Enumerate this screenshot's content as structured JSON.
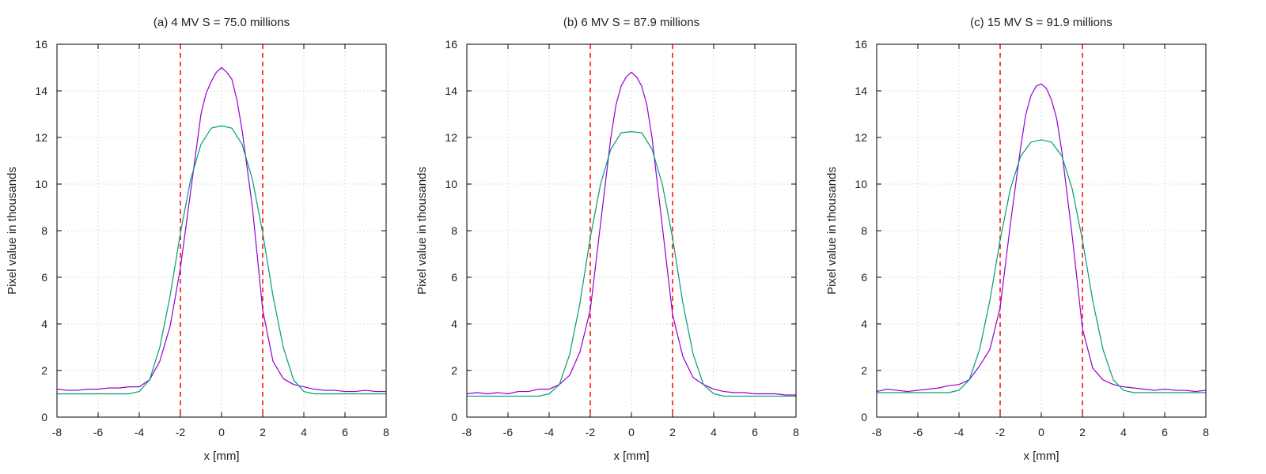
{
  "colors": {
    "series_measured": "#9400d3",
    "series_model": "#009e73",
    "marker_lines": "#ff0000",
    "grid": "#c8c8c8",
    "axes": "#000000"
  },
  "chart_data": [
    {
      "type": "line",
      "title": "(a) 4 MV S = 75.0 millions",
      "xlabel": "x [mm]",
      "ylabel": "Pixel value in thousands",
      "xlim": [
        -8,
        8
      ],
      "ylim": [
        0,
        16
      ],
      "xticks": [
        "-8",
        "-6",
        "-4",
        "-2",
        "0",
        "2",
        "4",
        "6",
        "8"
      ],
      "yticks": [
        "0",
        "2",
        "4",
        "6",
        "8",
        "10",
        "12",
        "14",
        "16"
      ],
      "grid": true,
      "vlines": [
        -2,
        2
      ],
      "series": [
        {
          "color": "#9400d3",
          "x": [
            -8,
            -7.5,
            -7,
            -6.5,
            -6,
            -5.5,
            -5,
            -4.5,
            -4,
            -3.5,
            -3,
            -2.5,
            -2,
            -1.5,
            -1,
            -0.75,
            -0.5,
            -0.25,
            0,
            0.25,
            0.5,
            0.75,
            1,
            1.5,
            2,
            2.5,
            3,
            3.5,
            4,
            4.5,
            5,
            5.5,
            6,
            6.5,
            7,
            7.5,
            8
          ],
          "y": [
            1.2,
            1.15,
            1.15,
            1.2,
            1.2,
            1.25,
            1.25,
            1.3,
            1.3,
            1.6,
            2.4,
            3.9,
            6.4,
            9.7,
            13.0,
            13.9,
            14.4,
            14.8,
            15.0,
            14.8,
            14.5,
            13.6,
            12.3,
            9.0,
            4.6,
            2.4,
            1.65,
            1.4,
            1.3,
            1.2,
            1.15,
            1.15,
            1.1,
            1.1,
            1.15,
            1.1,
            1.1
          ]
        },
        {
          "color": "#009e73",
          "x": [
            -8,
            -7,
            -6,
            -5,
            -4.5,
            -4,
            -3.5,
            -3,
            -2.5,
            -2,
            -1.5,
            -1,
            -0.5,
            0,
            0.5,
            1,
            1.5,
            2,
            2.5,
            3,
            3.5,
            4,
            4.5,
            5,
            6,
            7,
            8
          ],
          "y": [
            1.0,
            1.0,
            1.0,
            1.0,
            1.0,
            1.1,
            1.6,
            3.0,
            5.2,
            7.9,
            10.2,
            11.7,
            12.4,
            12.5,
            12.4,
            11.7,
            10.2,
            7.9,
            5.2,
            3.0,
            1.6,
            1.1,
            1.0,
            1.0,
            1.0,
            1.0,
            1.0
          ]
        }
      ]
    },
    {
      "type": "line",
      "title": "(b) 6 MV S = 87.9 millions",
      "xlabel": "x [mm]",
      "ylabel": "Pixel value in thousands",
      "xlim": [
        -8,
        8
      ],
      "ylim": [
        0,
        16
      ],
      "xticks": [
        "-8",
        "-6",
        "-4",
        "-2",
        "0",
        "2",
        "4",
        "6",
        "8"
      ],
      "yticks": [
        "0",
        "2",
        "4",
        "6",
        "8",
        "10",
        "12",
        "14",
        "16"
      ],
      "grid": true,
      "vlines": [
        -2,
        2
      ],
      "series": [
        {
          "color": "#9400d3",
          "x": [
            -8,
            -7.5,
            -7,
            -6.5,
            -6,
            -5.5,
            -5,
            -4.5,
            -4,
            -3.5,
            -3,
            -2.5,
            -2,
            -1.5,
            -1,
            -0.75,
            -0.5,
            -0.25,
            0,
            0.25,
            0.5,
            0.75,
            1,
            1.5,
            2,
            2.5,
            3,
            3.5,
            4,
            4.5,
            5,
            5.5,
            6,
            6.5,
            7,
            7.5,
            8
          ],
          "y": [
            1.0,
            1.05,
            1.0,
            1.05,
            1.0,
            1.1,
            1.1,
            1.2,
            1.2,
            1.4,
            1.8,
            2.8,
            4.6,
            8.3,
            12.0,
            13.4,
            14.2,
            14.6,
            14.8,
            14.6,
            14.2,
            13.4,
            12.0,
            8.2,
            4.4,
            2.6,
            1.7,
            1.4,
            1.2,
            1.1,
            1.05,
            1.05,
            1.0,
            1.0,
            1.0,
            0.95,
            0.95
          ]
        },
        {
          "color": "#009e73",
          "x": [
            -8,
            -7,
            -6,
            -5,
            -4.5,
            -4,
            -3.5,
            -3,
            -2.5,
            -2,
            -1.5,
            -1,
            -0.5,
            0,
            0.5,
            1,
            1.5,
            2,
            2.5,
            3,
            3.5,
            4,
            4.5,
            5,
            6,
            7,
            8
          ],
          "y": [
            0.9,
            0.9,
            0.9,
            0.9,
            0.9,
            1.0,
            1.4,
            2.7,
            4.9,
            7.7,
            10.0,
            11.5,
            12.2,
            12.25,
            12.2,
            11.5,
            10.0,
            7.7,
            4.9,
            2.7,
            1.4,
            1.0,
            0.9,
            0.9,
            0.9,
            0.9,
            0.9
          ]
        }
      ]
    },
    {
      "type": "line",
      "title": "(c) 15 MV S = 91.9 millions",
      "xlabel": "x [mm]",
      "ylabel": "Pixel value in thousands",
      "xlim": [
        -8,
        8
      ],
      "ylim": [
        0,
        16
      ],
      "xticks": [
        "-8",
        "-6",
        "-4",
        "-2",
        "0",
        "2",
        "4",
        "6",
        "8"
      ],
      "yticks": [
        "0",
        "2",
        "4",
        "6",
        "8",
        "10",
        "12",
        "14",
        "16"
      ],
      "grid": true,
      "vlines": [
        -2,
        2
      ],
      "series": [
        {
          "color": "#9400d3",
          "x": [
            -8,
            -7.5,
            -7,
            -6.5,
            -6,
            -5.5,
            -5,
            -4.5,
            -4,
            -3.5,
            -3,
            -2.5,
            -2,
            -1.5,
            -1,
            -0.75,
            -0.5,
            -0.25,
            0,
            0.25,
            0.5,
            0.75,
            1,
            1.5,
            2,
            2.5,
            3,
            3.5,
            4,
            4.5,
            5,
            5.5,
            6,
            6.5,
            7,
            7.5,
            8
          ],
          "y": [
            1.1,
            1.2,
            1.15,
            1.1,
            1.15,
            1.2,
            1.25,
            1.35,
            1.4,
            1.6,
            2.2,
            2.9,
            4.7,
            8.3,
            11.6,
            13.0,
            13.8,
            14.2,
            14.3,
            14.1,
            13.6,
            12.8,
            11.4,
            7.8,
            3.8,
            2.1,
            1.6,
            1.4,
            1.3,
            1.25,
            1.2,
            1.15,
            1.2,
            1.15,
            1.15,
            1.1,
            1.15
          ]
        },
        {
          "color": "#009e73",
          "x": [
            -8,
            -7,
            -6,
            -5,
            -4.5,
            -4,
            -3.5,
            -3,
            -2.5,
            -2,
            -1.5,
            -1,
            -0.5,
            0,
            0.5,
            1,
            1.5,
            2,
            2.5,
            3,
            3.5,
            4,
            4.5,
            5,
            6,
            7,
            8
          ],
          "y": [
            1.05,
            1.05,
            1.05,
            1.05,
            1.05,
            1.15,
            1.6,
            2.9,
            5.0,
            7.6,
            9.8,
            11.2,
            11.8,
            11.9,
            11.8,
            11.2,
            9.8,
            7.6,
            5.0,
            2.9,
            1.6,
            1.15,
            1.05,
            1.05,
            1.05,
            1.05,
            1.05
          ]
        }
      ]
    }
  ]
}
